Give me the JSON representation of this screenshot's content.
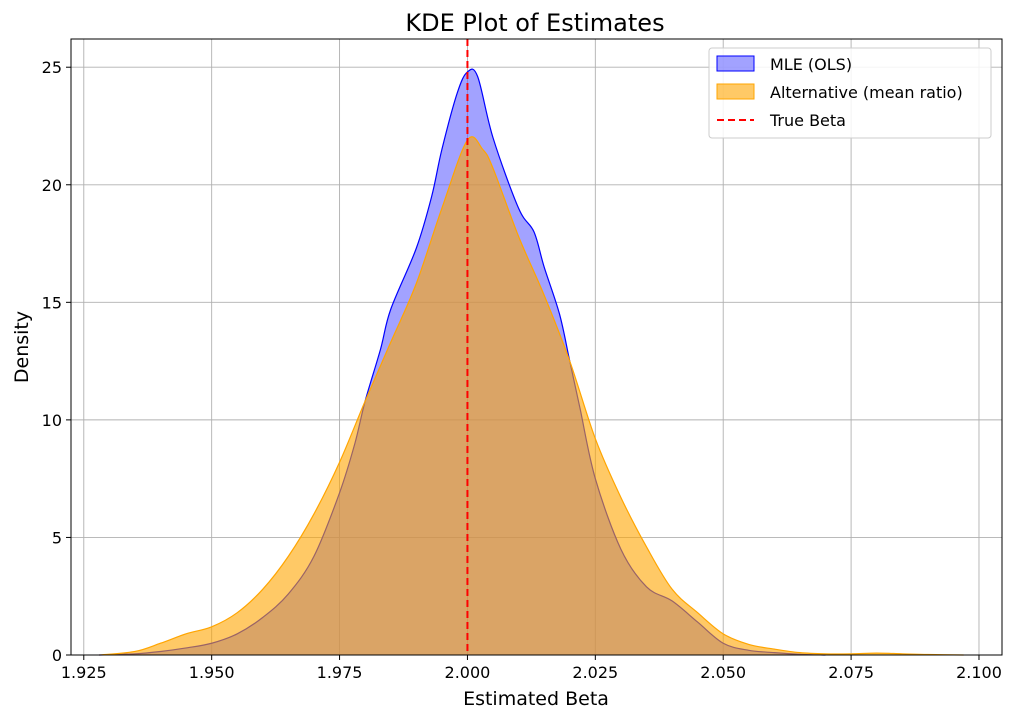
{
  "chart_data": {
    "type": "area",
    "title": "KDE Plot of Estimates",
    "xlabel": "Estimated Beta",
    "ylabel": "Density",
    "xlim": [
      1.9225,
      2.1045
    ],
    "ylim": [
      0,
      26.2
    ],
    "xticks": [
      1.925,
      1.95,
      1.975,
      2.0,
      2.025,
      2.05,
      2.075,
      2.1
    ],
    "xtick_labels": [
      "1.925",
      "1.950",
      "1.975",
      "2.000",
      "2.025",
      "2.050",
      "2.075",
      "2.100"
    ],
    "yticks": [
      0,
      5,
      10,
      15,
      20,
      25
    ],
    "ytick_labels": [
      "0",
      "5",
      "10",
      "15",
      "20",
      "25"
    ],
    "grid": true,
    "legend_position": "top-right",
    "series": [
      {
        "name": "MLE (OLS)",
        "fill_color": "#6464ff",
        "line_color": "#0000ff",
        "fill_opacity": 0.6,
        "points": [
          [
            1.928,
            0.0
          ],
          [
            1.935,
            0.05
          ],
          [
            1.94,
            0.15
          ],
          [
            1.945,
            0.3
          ],
          [
            1.95,
            0.5
          ],
          [
            1.955,
            0.9
          ],
          [
            1.96,
            1.6
          ],
          [
            1.965,
            2.6
          ],
          [
            1.97,
            4.2
          ],
          [
            1.975,
            6.9
          ],
          [
            1.978,
            9.0
          ],
          [
            1.98,
            10.8
          ],
          [
            1.983,
            13.0
          ],
          [
            1.985,
            14.7
          ],
          [
            1.99,
            17.3
          ],
          [
            1.993,
            19.5
          ],
          [
            1.995,
            21.5
          ],
          [
            1.998,
            23.9
          ],
          [
            2.0,
            24.8
          ],
          [
            2.002,
            24.6
          ],
          [
            2.005,
            22.0
          ],
          [
            2.01,
            19.0
          ],
          [
            2.013,
            18.0
          ],
          [
            2.015,
            16.5
          ],
          [
            2.018,
            14.5
          ],
          [
            2.02,
            12.5
          ],
          [
            2.022,
            10.5
          ],
          [
            2.025,
            7.5
          ],
          [
            2.03,
            4.5
          ],
          [
            2.035,
            2.9
          ],
          [
            2.04,
            2.3
          ],
          [
            2.045,
            1.4
          ],
          [
            2.05,
            0.5
          ],
          [
            2.055,
            0.2
          ],
          [
            2.06,
            0.1
          ],
          [
            2.065,
            0.03
          ],
          [
            2.07,
            0.0
          ]
        ]
      },
      {
        "name": "Alternative (mean ratio)",
        "fill_color": "#ffa500",
        "line_color": "#ffa500",
        "fill_opacity": 0.6,
        "points": [
          [
            1.928,
            0.0
          ],
          [
            1.935,
            0.15
          ],
          [
            1.94,
            0.5
          ],
          [
            1.945,
            0.9
          ],
          [
            1.95,
            1.2
          ],
          [
            1.955,
            1.8
          ],
          [
            1.96,
            2.8
          ],
          [
            1.965,
            4.2
          ],
          [
            1.97,
            6.0
          ],
          [
            1.975,
            8.2
          ],
          [
            1.98,
            10.8
          ],
          [
            1.985,
            13.3
          ],
          [
            1.99,
            15.8
          ],
          [
            1.995,
            19.0
          ],
          [
            2.0,
            21.9
          ],
          [
            2.003,
            21.5
          ],
          [
            2.005,
            20.7
          ],
          [
            2.01,
            17.8
          ],
          [
            2.015,
            15.3
          ],
          [
            2.02,
            12.5
          ],
          [
            2.025,
            9.2
          ],
          [
            2.03,
            6.7
          ],
          [
            2.035,
            4.6
          ],
          [
            2.04,
            2.8
          ],
          [
            2.045,
            1.8
          ],
          [
            2.05,
            0.9
          ],
          [
            2.055,
            0.45
          ],
          [
            2.06,
            0.25
          ],
          [
            2.065,
            0.1
          ],
          [
            2.07,
            0.05
          ],
          [
            2.075,
            0.05
          ],
          [
            2.08,
            0.08
          ],
          [
            2.085,
            0.05
          ],
          [
            2.09,
            0.02
          ],
          [
            2.097,
            0.0
          ]
        ]
      }
    ],
    "reference_line": {
      "name": "True Beta",
      "x": 2.0,
      "color": "#ff0000",
      "style": "dashed"
    }
  }
}
